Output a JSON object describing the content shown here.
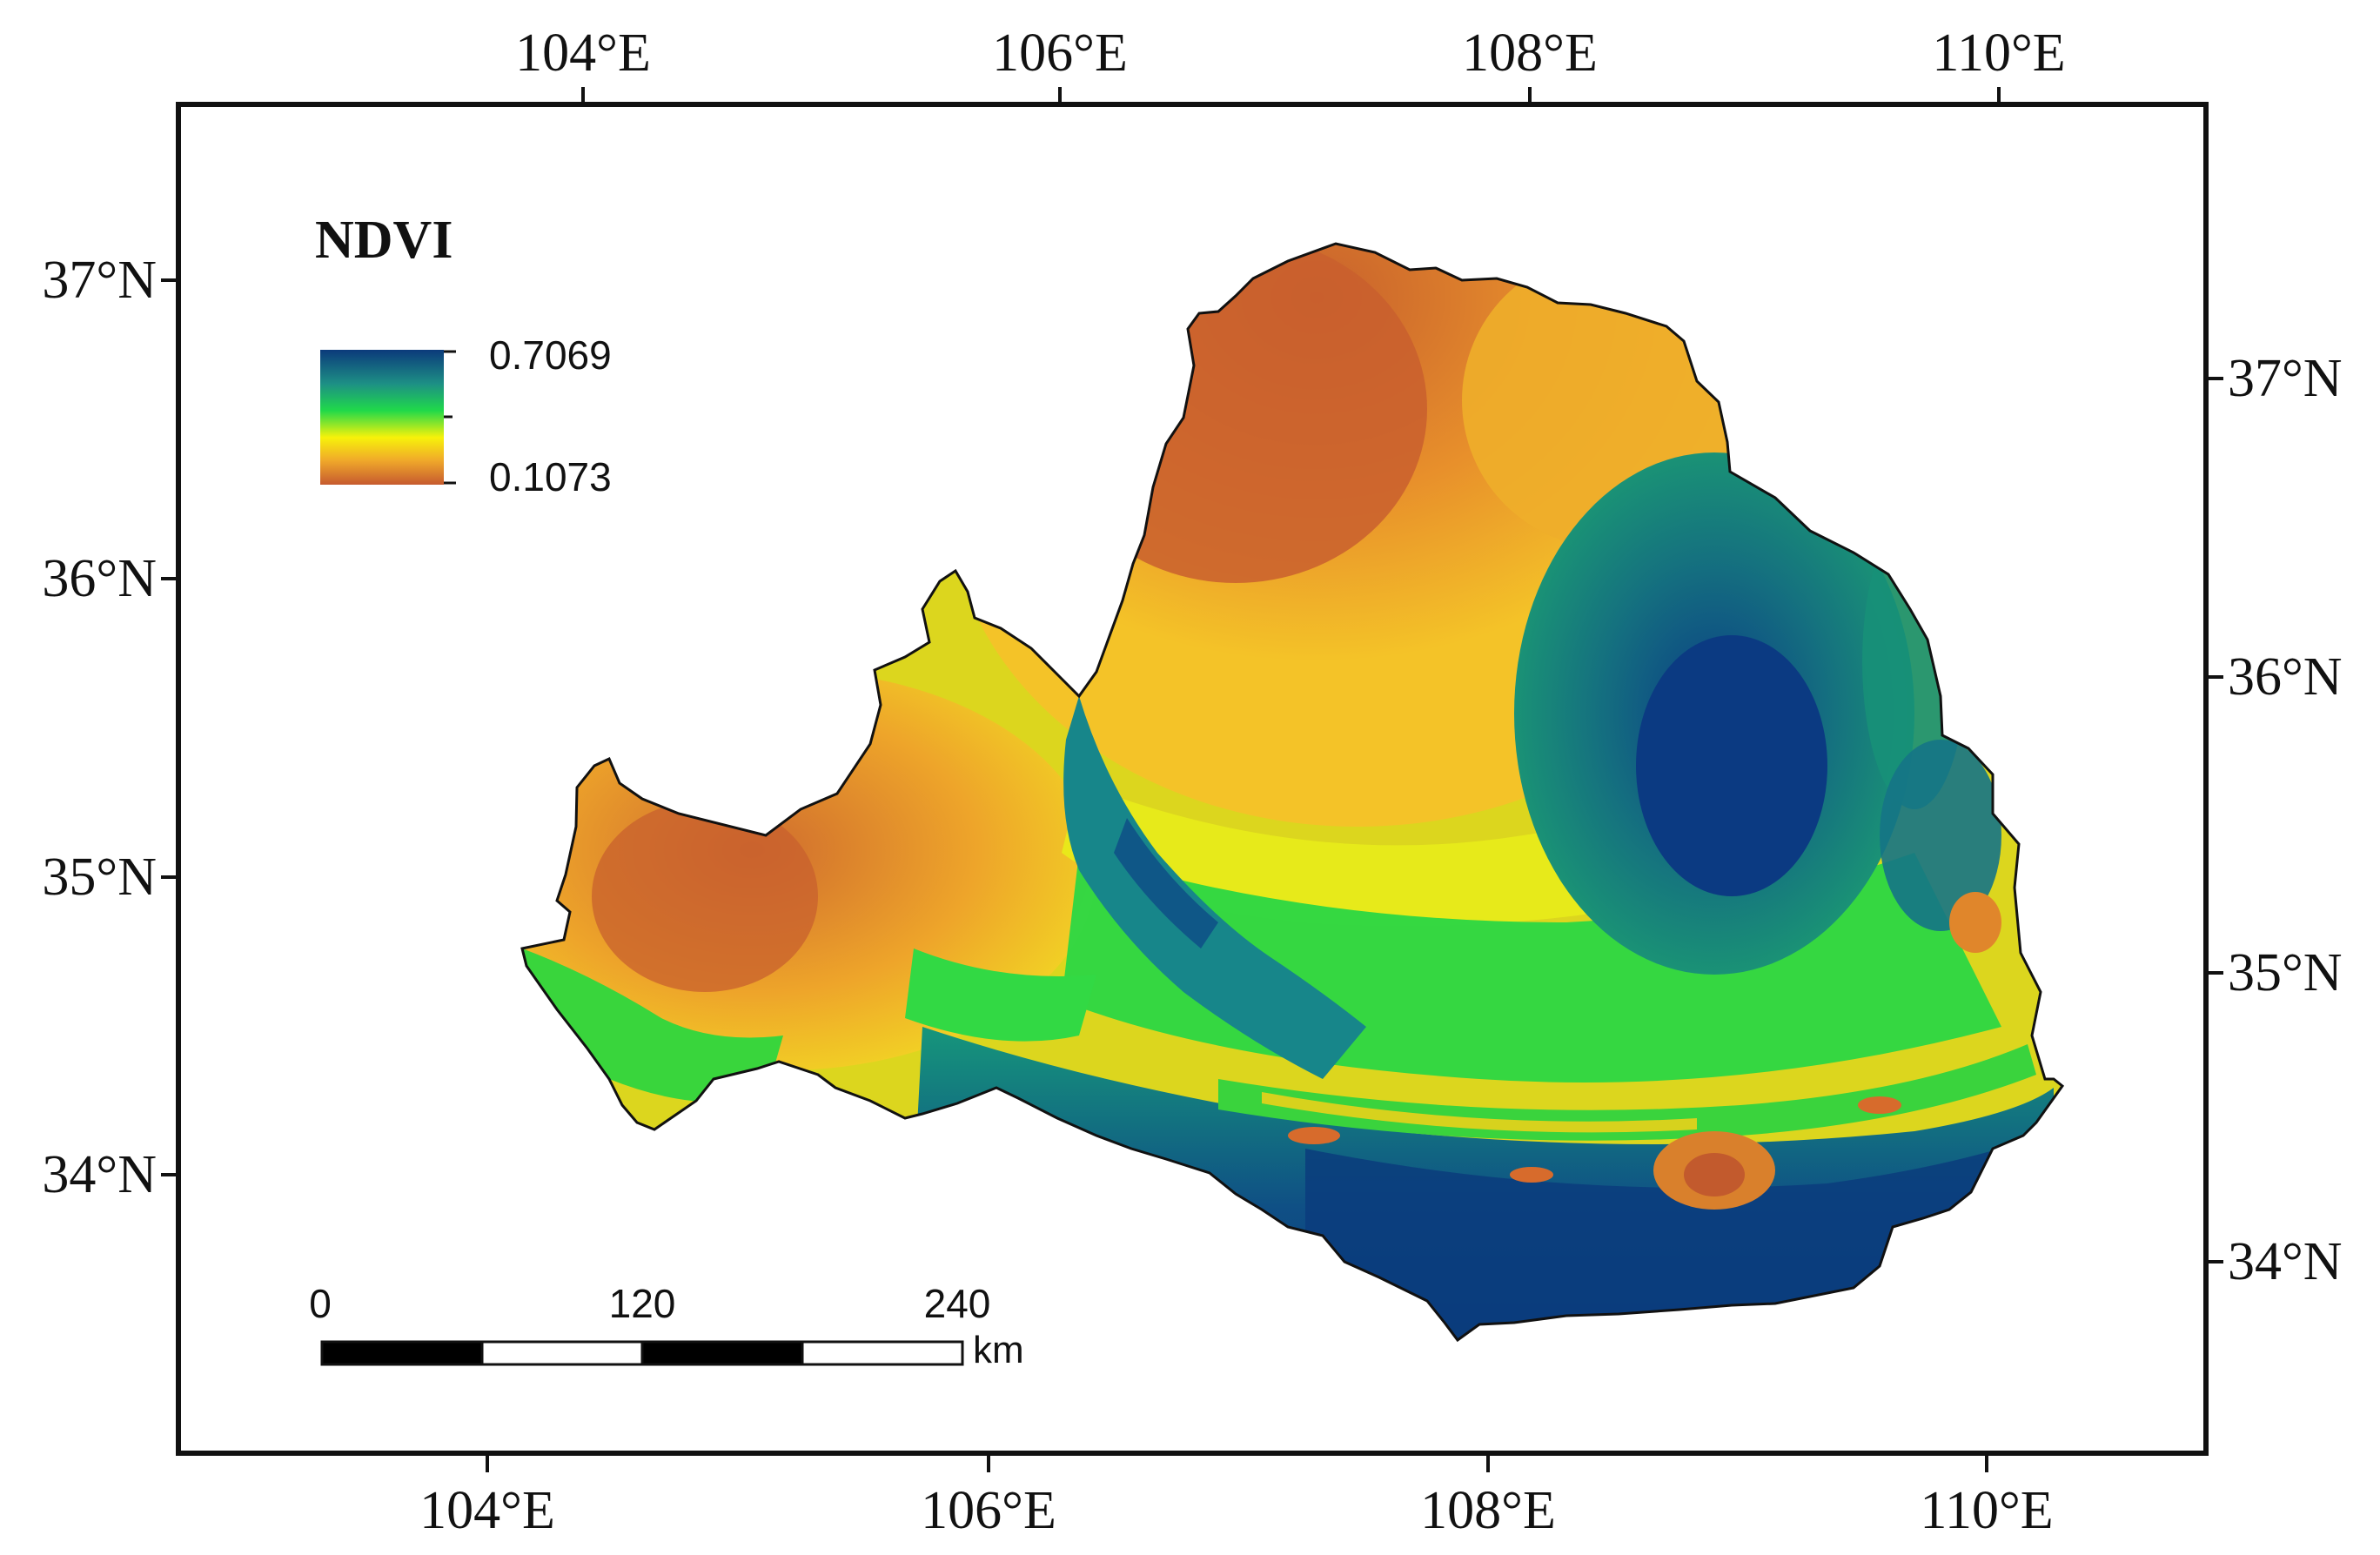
{
  "map": {
    "variable": "NDVI",
    "colormap": [
      "#c65a2f",
      "#f0a92a",
      "#f7f20a",
      "#20d94a",
      "#1d8f85",
      "#0b3a7b"
    ]
  },
  "legend": {
    "title": "NDVI",
    "max_label": "0.7069",
    "min_label": "0.1073",
    "max": 0.7069,
    "min": 0.1073
  },
  "axes": {
    "top_ticks": [
      "104°E",
      "106°E",
      "108°E",
      "110°E"
    ],
    "bottom_ticks": [
      "104°E",
      "106°E",
      "108°E",
      "110°E"
    ],
    "left_ticks": [
      "37°N",
      "36°N",
      "35°N",
      "34°N"
    ],
    "right_ticks": [
      "37°N",
      "36°N",
      "35°N",
      "34°N"
    ]
  },
  "scale_bar": {
    "labels": [
      "0",
      "120",
      "240"
    ],
    "unit": "km"
  }
}
